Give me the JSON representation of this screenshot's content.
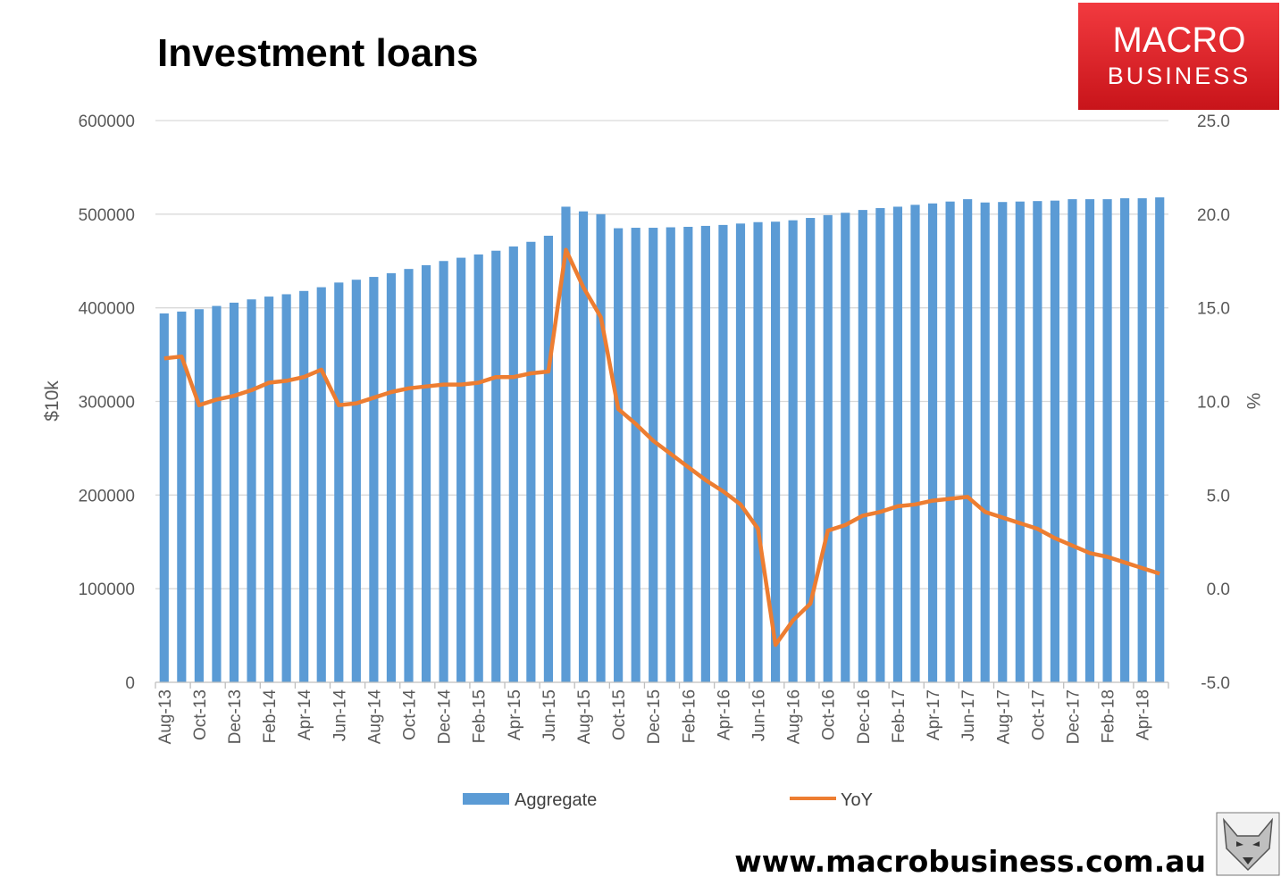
{
  "chart_data": {
    "type": "bar",
    "title": "Investment loans",
    "ylabel": "$10k",
    "y2label": "%",
    "ylim": [
      0,
      600000
    ],
    "y2lim": [
      -5,
      25
    ],
    "yticks": [
      "600000",
      "500000",
      "400000",
      "300000",
      "200000",
      "100000",
      "0"
    ],
    "y2ticks": [
      "25.0",
      "20.0",
      "15.0",
      "10.0",
      "5.0",
      "0.0",
      "-5.0"
    ],
    "grid": true,
    "legend_position": "bottom",
    "categories": [
      "Aug-13",
      "Sep-13",
      "Oct-13",
      "Nov-13",
      "Dec-13",
      "Jan-14",
      "Feb-14",
      "Mar-14",
      "Apr-14",
      "May-14",
      "Jun-14",
      "Jul-14",
      "Aug-14",
      "Sep-14",
      "Oct-14",
      "Nov-14",
      "Dec-14",
      "Jan-15",
      "Feb-15",
      "Mar-15",
      "Apr-15",
      "May-15",
      "Jun-15",
      "Jul-15",
      "Aug-15",
      "Sep-15",
      "Oct-15",
      "Nov-15",
      "Dec-15",
      "Jan-16",
      "Feb-16",
      "Mar-16",
      "Apr-16",
      "May-16",
      "Jun-16",
      "Jul-16",
      "Aug-16",
      "Sep-16",
      "Oct-16",
      "Nov-16",
      "Dec-16",
      "Jan-17",
      "Feb-17",
      "Mar-17",
      "Apr-17",
      "May-17",
      "Jun-17",
      "Jul-17",
      "Aug-17",
      "Sep-17",
      "Oct-17",
      "Nov-17",
      "Dec-17",
      "Jan-18",
      "Feb-18",
      "Mar-18",
      "Apr-18",
      "May-18"
    ],
    "xtick_labels": [
      "Aug-13",
      "Oct-13",
      "Dec-13",
      "Feb-14",
      "Apr-14",
      "Jun-14",
      "Aug-14",
      "Oct-14",
      "Dec-14",
      "Feb-15",
      "Apr-15",
      "Jun-15",
      "Aug-15",
      "Oct-15",
      "Dec-15",
      "Feb-16",
      "Apr-16",
      "Jun-16",
      "Aug-16",
      "Oct-16",
      "Dec-16",
      "Feb-17",
      "Apr-17",
      "Jun-17",
      "Aug-17",
      "Oct-17",
      "Dec-17",
      "Feb-18",
      "Apr-18"
    ],
    "series": [
      {
        "name": "Aggregate",
        "type": "bar",
        "axis": "left",
        "color": "#5B9BD5",
        "values": [
          394000,
          396000,
          398500,
          402000,
          405500,
          409000,
          412000,
          414500,
          418000,
          422000,
          427000,
          430000,
          433000,
          437000,
          441500,
          445500,
          450000,
          453500,
          457000,
          461000,
          465500,
          470500,
          477000,
          508000,
          503000,
          500000,
          485000,
          485500,
          485500,
          486000,
          486500,
          487500,
          488500,
          490000,
          491500,
          492000,
          493500,
          496000,
          499000,
          501500,
          504500,
          506500,
          508000,
          510000,
          511500,
          513500,
          516000,
          512500,
          513000,
          513500,
          514000,
          514500,
          516000,
          516000,
          516000,
          517000,
          517000,
          518000
        ]
      },
      {
        "name": "YoY",
        "type": "line",
        "axis": "right",
        "color": "#ED7D31",
        "values": [
          12.3,
          12.4,
          9.8,
          10.1,
          10.3,
          10.6,
          11.0,
          11.1,
          11.3,
          11.7,
          9.8,
          9.9,
          10.2,
          10.5,
          10.7,
          10.8,
          10.9,
          10.9,
          11.0,
          11.3,
          11.3,
          11.5,
          11.6,
          18.1,
          16.1,
          14.5,
          9.6,
          8.8,
          7.9,
          7.2,
          6.5,
          5.8,
          5.2,
          4.5,
          3.2,
          -3.0,
          -1.7,
          -0.8,
          3.1,
          3.4,
          3.9,
          4.1,
          4.4,
          4.5,
          4.7,
          4.8,
          4.9,
          4.1,
          3.8,
          3.5,
          3.2,
          2.7,
          2.3,
          1.9,
          1.7,
          1.4,
          1.1,
          0.8
        ]
      }
    ]
  },
  "logo": {
    "line1": "MACRO",
    "line2": "BUSINESS",
    "color": "#E31E24"
  },
  "footer": {
    "url": "www.macrobusiness.com.au"
  },
  "icons": {
    "mascot": "wolf-icon"
  }
}
